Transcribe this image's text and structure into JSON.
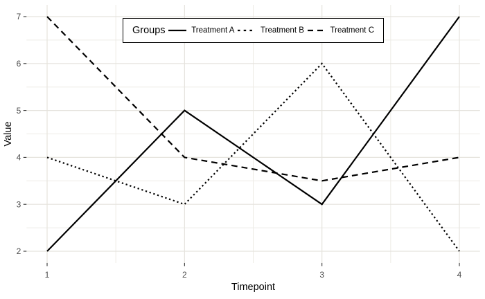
{
  "chart_data": {
    "type": "line",
    "title": "",
    "xlabel": "Timepoint",
    "ylabel": "Value",
    "x_ticks": [
      1,
      2,
      3,
      4
    ],
    "y_ticks": [
      2,
      3,
      4,
      5,
      6,
      7
    ],
    "x_minor": [
      1.5,
      2.5,
      3.5
    ],
    "y_minor": [
      2.5,
      3.5,
      4.5,
      5.5,
      6.5
    ],
    "xlim": [
      0.85,
      4.15
    ],
    "ylim": [
      1.75,
      7.25
    ],
    "grid": "major and minor, light gray on white panel",
    "legend": {
      "title": "Groups",
      "position": "top-center-inside",
      "border": true
    },
    "series": [
      {
        "name": "Treatment A",
        "linetype": "solid",
        "color": "#000000",
        "x": [
          1,
          2,
          3,
          4
        ],
        "values": [
          2,
          5,
          3,
          7
        ]
      },
      {
        "name": "Treatment B",
        "linetype": "dotted",
        "color": "#000000",
        "x": [
          1,
          2,
          3,
          4
        ],
        "values": [
          4,
          3,
          6,
          2
        ]
      },
      {
        "name": "Treatment C",
        "linetype": "dashed",
        "color": "#000000",
        "x": [
          1,
          2,
          3,
          4
        ],
        "values": [
          7,
          4,
          3.5,
          4
        ]
      }
    ],
    "colors": {
      "background": "#ffffff",
      "grid_major": "#e5e3dd",
      "grid_minor": "#edebe6",
      "tick_mark": "#333333",
      "tick_label": "#4d4d4d",
      "axis_title": "#000000",
      "series_stroke": "#000000",
      "legend_border": "#000000"
    }
  }
}
